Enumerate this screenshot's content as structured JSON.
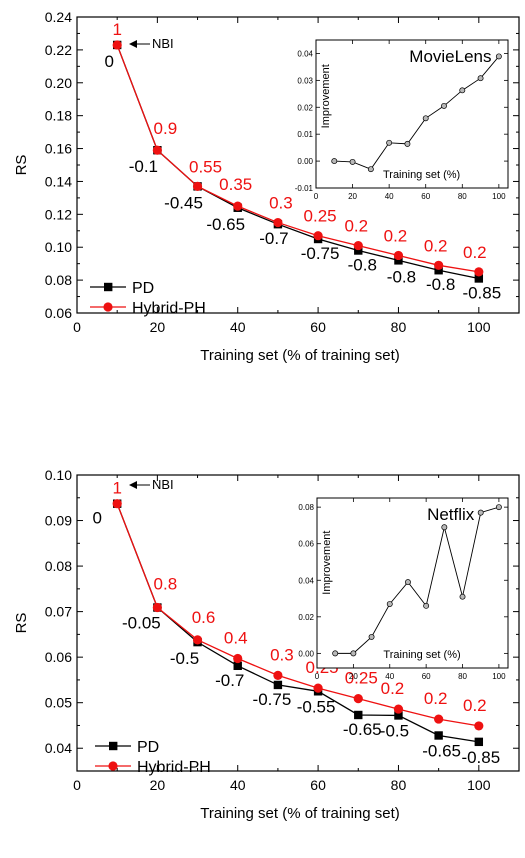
{
  "chart_data": [
    {
      "type": "line",
      "title": "",
      "xlabel": "Training set (% of training set)",
      "ylabel": "RS",
      "xlim": [
        0,
        110
      ],
      "ylim": [
        0.06,
        0.24
      ],
      "xticks": [
        0,
        20,
        40,
        60,
        80,
        100
      ],
      "yticks": [
        0.06,
        0.08,
        0.1,
        0.12,
        0.14,
        0.16,
        0.18,
        0.2,
        0.22,
        0.24
      ],
      "ytick_labels": [
        "0.06",
        "0.08",
        "0.10",
        "0.12",
        "0.14",
        "0.16",
        "0.18",
        "0.20",
        "0.22",
        "0.24"
      ],
      "legend_position": "bottom-left",
      "x": [
        10,
        20,
        30,
        40,
        50,
        60,
        70,
        80,
        90,
        100
      ],
      "series": [
        {
          "name": "PD",
          "color": "#000000",
          "marker": "square",
          "values": [
            0.223,
            0.159,
            0.137,
            0.124,
            0.114,
            0.105,
            0.098,
            0.092,
            0.086,
            0.081
          ],
          "param_labels": [
            "0",
            "-0.1",
            "-0.45",
            "-0.65",
            "-0.7",
            "-0.75",
            "-0.8",
            "-0.8",
            "-0.8",
            "-0.85"
          ]
        },
        {
          "name": "Hybrid-PH",
          "color": "#ee1111",
          "marker": "circle",
          "values": [
            0.223,
            0.159,
            0.137,
            0.125,
            0.115,
            0.107,
            0.101,
            0.095,
            0.089,
            0.085
          ],
          "param_labels": [
            "1",
            "0.9",
            "0.55",
            "0.35",
            "0.3",
            "0.25",
            "0.2",
            "0.2",
            "0.2",
            "0.2"
          ]
        }
      ],
      "annotation": "NBI",
      "inset": {
        "title": "MovieLens",
        "xlabel": "Training set (%)",
        "ylabel": "Improvement",
        "xlim": [
          0,
          105
        ],
        "ylim": [
          -0.01,
          0.045
        ],
        "xticks": [
          0,
          20,
          40,
          60,
          80,
          100
        ],
        "yticks": [
          -0.01,
          0.0,
          0.01,
          0.02,
          0.03,
          0.04
        ],
        "ytick_labels": [
          "-0.01",
          "0.00",
          "0.01",
          "0.02",
          "0.03",
          "0.04"
        ],
        "x": [
          10,
          20,
          30,
          40,
          50,
          60,
          70,
          80,
          90,
          100
        ],
        "values": [
          0.0,
          -0.0003,
          -0.003,
          0.0068,
          0.0064,
          0.0159,
          0.0205,
          0.0263,
          0.0308,
          0.0389
        ]
      }
    },
    {
      "type": "line",
      "title": "",
      "xlabel": "Training set (% of training set)",
      "ylabel": "RS",
      "xlim": [
        0,
        110
      ],
      "ylim": [
        0.035,
        0.1
      ],
      "xticks": [
        0,
        20,
        40,
        60,
        80,
        100
      ],
      "yticks": [
        0.04,
        0.05,
        0.06,
        0.07,
        0.08,
        0.09,
        0.1
      ],
      "ytick_labels": [
        "0.04",
        "0.05",
        "0.06",
        "0.07",
        "0.08",
        "0.09",
        "0.10"
      ],
      "legend_position": "bottom-left",
      "x": [
        10,
        20,
        30,
        40,
        50,
        60,
        70,
        80,
        90,
        100
      ],
      "series": [
        {
          "name": "PD",
          "color": "#000000",
          "marker": "square",
          "values": [
            0.0937,
            0.0709,
            0.0633,
            0.0581,
            0.0539,
            0.0525,
            0.0473,
            0.0472,
            0.0428,
            0.0414
          ],
          "param_labels": [
            "0",
            "-0.05",
            "-0.5",
            "-0.7",
            "-0.75",
            "-0.55",
            "-0.65",
            "-0.5",
            "-0.65",
            "-0.85"
          ]
        },
        {
          "name": "Hybrid-PH",
          "color": "#ee1111",
          "marker": "circle",
          "values": [
            0.0937,
            0.0709,
            0.0638,
            0.0597,
            0.056,
            0.0532,
            0.0509,
            0.0486,
            0.0464,
            0.0449
          ],
          "param_labels": [
            "1",
            "0.8",
            "0.6",
            "0.4",
            "0.3",
            "0.25",
            "0.25",
            "0.2",
            "0.2",
            "0.2"
          ]
        }
      ],
      "annotation": "NBI",
      "inset": {
        "title": "Netflix",
        "xlabel": "Training set (%)",
        "ylabel": "Improvement",
        "xlim": [
          0,
          105
        ],
        "ylim": [
          -0.008,
          0.085
        ],
        "xticks": [
          0,
          20,
          40,
          60,
          80,
          100
        ],
        "yticks": [
          0.0,
          0.02,
          0.04,
          0.06,
          0.08
        ],
        "ytick_labels": [
          "0.00",
          "0.02",
          "0.04",
          "0.06",
          "0.08"
        ],
        "x": [
          10,
          20,
          30,
          40,
          50,
          60,
          70,
          80,
          90,
          100
        ],
        "values": [
          0.0,
          0.0,
          0.009,
          0.027,
          0.039,
          0.026,
          0.069,
          0.031,
          0.077,
          0.08
        ]
      }
    }
  ]
}
